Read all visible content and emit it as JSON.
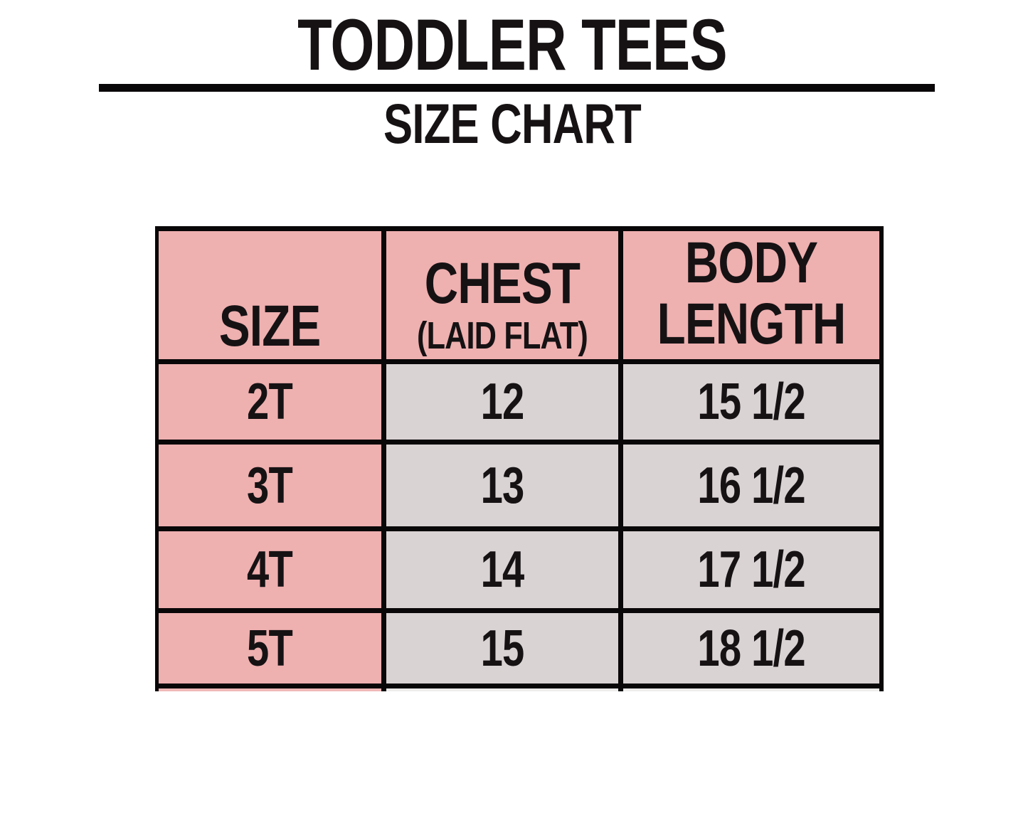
{
  "header": {
    "title": "TODDLER TEES",
    "subtitle": "SIZE CHART"
  },
  "colors": {
    "header_pink": "#efb0b0",
    "cell_gray": "#dad3d4",
    "border_black": "#0a0708",
    "text_black": "#161214"
  },
  "chart_data": {
    "type": "table",
    "title": "TODDLER TEES",
    "subtitle": "SIZE CHART",
    "columns": [
      {
        "label": "SIZE",
        "sublabel": ""
      },
      {
        "label": "CHEST",
        "sublabel": "(LAID FLAT)"
      },
      {
        "label": "BODY LENGTH",
        "sublabel": ""
      }
    ],
    "rows": [
      {
        "size": "2T",
        "chest": "12",
        "body_length": "15 1/2"
      },
      {
        "size": "3T",
        "chest": "13",
        "body_length": "16 1/2"
      },
      {
        "size": "4T",
        "chest": "14",
        "body_length": "17 1/2"
      },
      {
        "size": "5T",
        "chest": "15",
        "body_length": "18 1/2"
      }
    ],
    "layout": {
      "header_fill": "pink",
      "size_column_fill": "pink",
      "data_cell_fill": "gray",
      "grid": "thick-black",
      "bottom_edge": "cut-off"
    }
  }
}
